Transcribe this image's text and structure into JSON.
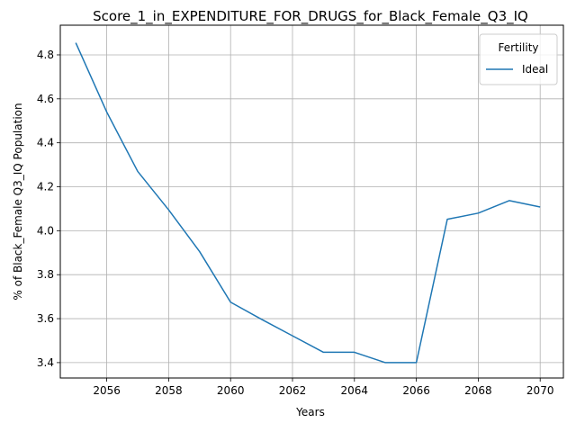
{
  "chart_data": {
    "type": "line",
    "title": "Score_1_in_EXPENDITURE_FOR_DRUGS_for_Black_Female_Q3_IQ",
    "xlabel": "Years",
    "ylabel": "% of Black_Female Q3_IQ Population",
    "xlim": [
      2054.5,
      2070.75
    ],
    "ylim": [
      3.33,
      4.935
    ],
    "xticks": [
      2056,
      2058,
      2060,
      2062,
      2064,
      2066,
      2068,
      2070
    ],
    "yticks": [
      3.4,
      3.6,
      3.8,
      4.0,
      4.2,
      4.4,
      4.6,
      4.8
    ],
    "grid": true,
    "legend": {
      "title": "Fertility",
      "placement": "top-right"
    },
    "series": [
      {
        "name": "Ideal",
        "color": "#1f77b4",
        "x": [
          2055,
          2056,
          2057,
          2058,
          2059,
          2060,
          2061,
          2062,
          2063,
          2064,
          2065,
          2066,
          2067,
          2068,
          2069,
          2070
        ],
        "y": [
          4.855,
          4.54,
          4.27,
          4.095,
          3.905,
          3.675,
          3.597,
          3.522,
          3.447,
          3.447,
          3.4,
          3.4,
          4.052,
          4.08,
          4.137,
          4.108
        ]
      }
    ]
  }
}
